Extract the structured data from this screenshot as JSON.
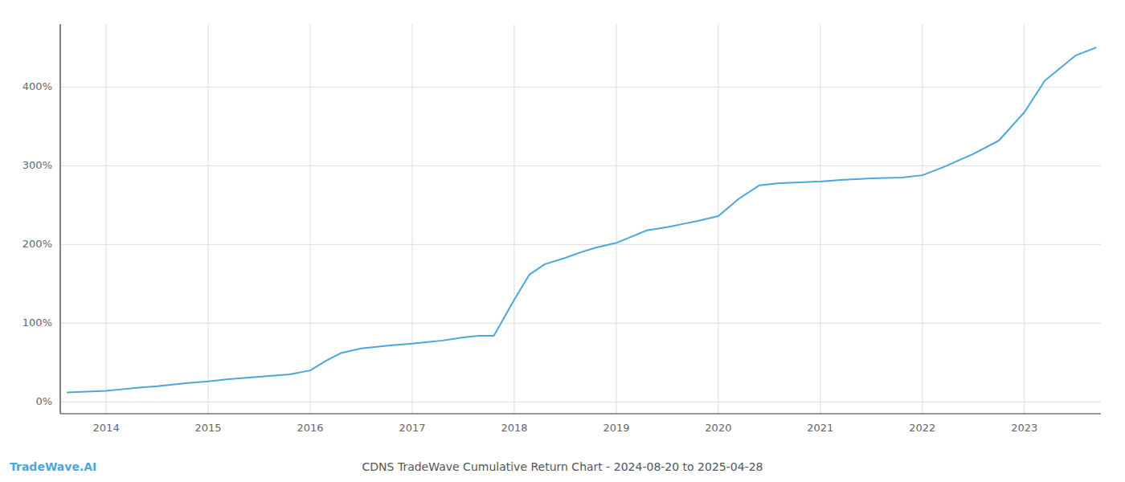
{
  "chart_data": {
    "type": "line",
    "title": "CDNS TradeWave Cumulative Return Chart - 2024-08-20 to 2025-04-28",
    "annotations": [
      "TradeWave.AI"
    ],
    "color": "#4DA6D9",
    "grid": true,
    "xlim": [
      2013.55,
      2023.75
    ],
    "xticks": [
      2014,
      2015,
      2016,
      2017,
      2018,
      2019,
      2020,
      2021,
      2022,
      2023
    ],
    "ylim": [
      -15,
      480
    ],
    "yticks": [
      {
        "value": 0,
        "label": "0%"
      },
      {
        "value": 100,
        "label": "100%"
      },
      {
        "value": 200,
        "label": "200%"
      },
      {
        "value": 300,
        "label": "300%"
      },
      {
        "value": 400,
        "label": "400%"
      }
    ],
    "x": [
      2013.62,
      2014.0,
      2014.15,
      2014.3,
      2014.5,
      2014.65,
      2014.8,
      2015.0,
      2015.2,
      2015.4,
      2015.6,
      2015.8,
      2016.0,
      2016.15,
      2016.3,
      2016.5,
      2016.65,
      2016.8,
      2017.0,
      2017.15,
      2017.3,
      2017.5,
      2017.65,
      2017.8,
      2018.0,
      2018.15,
      2018.3,
      2018.5,
      2018.65,
      2018.8,
      2019.0,
      2019.15,
      2019.3,
      2019.5,
      2019.65,
      2019.8,
      2020.0,
      2020.2,
      2020.4,
      2020.6,
      2020.8,
      2021.0,
      2021.2,
      2021.5,
      2021.8,
      2022.0,
      2022.2,
      2022.5,
      2022.75,
      2023.0,
      2023.2,
      2023.5,
      2023.7
    ],
    "values": [
      12,
      14,
      16,
      18,
      20,
      22,
      24,
      26,
      29,
      31,
      33,
      35,
      40,
      52,
      62,
      68,
      70,
      72,
      74,
      76,
      78,
      82,
      84,
      84,
      130,
      162,
      175,
      183,
      190,
      196,
      202,
      210,
      218,
      222,
      226,
      230,
      236,
      258,
      275,
      278,
      279,
      280,
      282,
      284,
      285,
      288,
      298,
      315,
      332,
      368,
      408,
      440,
      450
    ]
  }
}
